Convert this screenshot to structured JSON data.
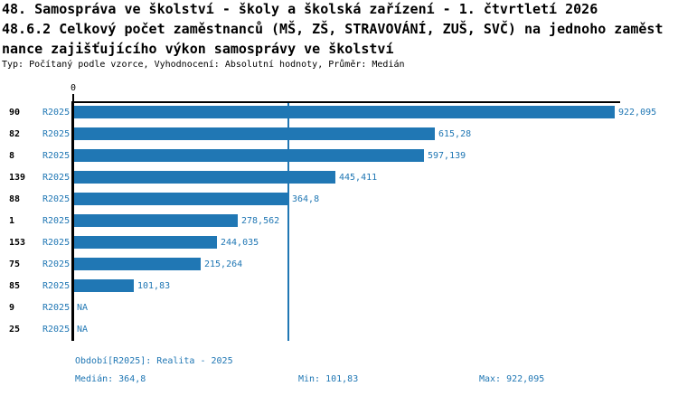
{
  "title": {
    "line1": "48. Samospráva ve školství - školy a školská zařízení - 1. čtvrtletí 2026",
    "line2": "48.6.2 Celkový počet zaměstnanců (MŠ, ZŠ, STRAVOVÁNÍ, ZUŠ, SVČ) na jednoho zaměst",
    "line3": "nance zajišťujícího výkon samosprávy ve školství",
    "meta": "Typ: Počítaný podle vzorce, Vyhodnocení: Absolutní hodnoty, Průměr: Medián"
  },
  "colors": {
    "bar": "#2077b4",
    "blue_text": "#2077b4",
    "axis": "#000000",
    "background": "#ffffff"
  },
  "chart_data": {
    "type": "bar",
    "orientation": "horizontal",
    "series_name": "R2025",
    "categories": [
      "90",
      "82",
      "8",
      "139",
      "88",
      "1",
      "153",
      "75",
      "85",
      "9",
      "25"
    ],
    "values": [
      922.095,
      615.28,
      597.139,
      445.411,
      364.8,
      278.562,
      244.035,
      215.264,
      101.83,
      null,
      null
    ],
    "value_labels": [
      "922,095",
      "615,28",
      "597,139",
      "445,411",
      "364,8",
      "278,562",
      "244,035",
      "215,264",
      "101,83",
      "NA",
      "NA"
    ],
    "na_label": "NA",
    "xlim": [
      0,
      930
    ],
    "x_tick_label": "0",
    "median_line_value": 364.8,
    "grid": "single vertical median line",
    "legend": "none"
  },
  "footer": {
    "period": "Období[R2025]: Realita - 2025",
    "median": "Medián: 364,8",
    "min": "Min: 101,83",
    "max": "Max: 922,095"
  }
}
